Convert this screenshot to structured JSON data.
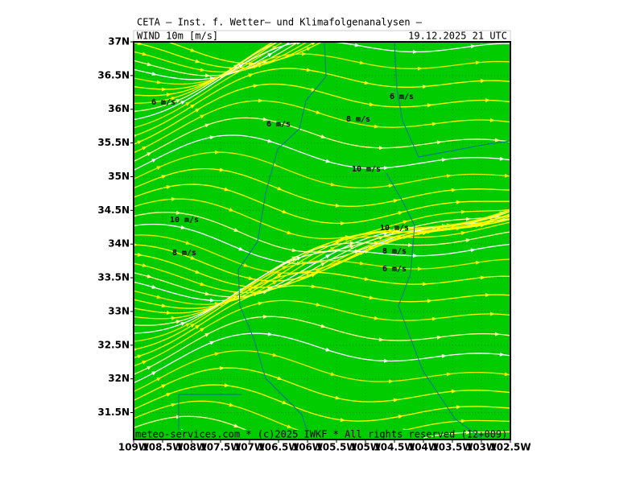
{
  "header": {
    "title": "CETA — Inst. f. Wetter— und Klimafolgenanalysen —",
    "field": "WIND 10m [m/s]",
    "valid_time": "19.12.2025 21 UTC"
  },
  "map": {
    "xlim": [
      -109,
      -102.5
    ],
    "ylim": [
      31.1,
      37
    ],
    "xticks": [
      {
        "value": -109,
        "label": "109W"
      },
      {
        "value": -108.5,
        "label": "108.5W"
      },
      {
        "value": -108,
        "label": "108W"
      },
      {
        "value": -107.5,
        "label": "107.5W"
      },
      {
        "value": -107,
        "label": "107W"
      },
      {
        "value": -106.5,
        "label": "106.5W"
      },
      {
        "value": -106,
        "label": "106W"
      },
      {
        "value": -105.5,
        "label": "105.5W"
      },
      {
        "value": -105,
        "label": "105W"
      },
      {
        "value": -104.5,
        "label": "104.5W"
      },
      {
        "value": -104,
        "label": "104W"
      },
      {
        "value": -103.5,
        "label": "103.5W"
      },
      {
        "value": -103,
        "label": "103W"
      },
      {
        "value": -102.5,
        "label": "102.5W"
      }
    ],
    "yticks": [
      {
        "value": 37,
        "label": "37N"
      },
      {
        "value": 36.5,
        "label": "36.5N"
      },
      {
        "value": 36,
        "label": "36N"
      },
      {
        "value": 35.5,
        "label": "35.5N"
      },
      {
        "value": 35,
        "label": "35N"
      },
      {
        "value": 34.5,
        "label": "34.5N"
      },
      {
        "value": 34,
        "label": "34N"
      },
      {
        "value": 33.5,
        "label": "33.5N"
      },
      {
        "value": 33,
        "label": "33N"
      },
      {
        "value": 32.5,
        "label": "32.5N"
      },
      {
        "value": 32,
        "label": "32N"
      },
      {
        "value": 31.5,
        "label": "31.5N"
      }
    ],
    "annotations": [
      "6 m/s",
      "6 m/s",
      "8 m/s",
      "6 m/s",
      "10 m/s",
      "10 m/s",
      "8 m/s",
      "10 m/s",
      "8 m/s",
      "6 m/s"
    ],
    "footer": "meteo-services.com * (c)2025 IWKF * All rights reserved (12+009)"
  }
}
